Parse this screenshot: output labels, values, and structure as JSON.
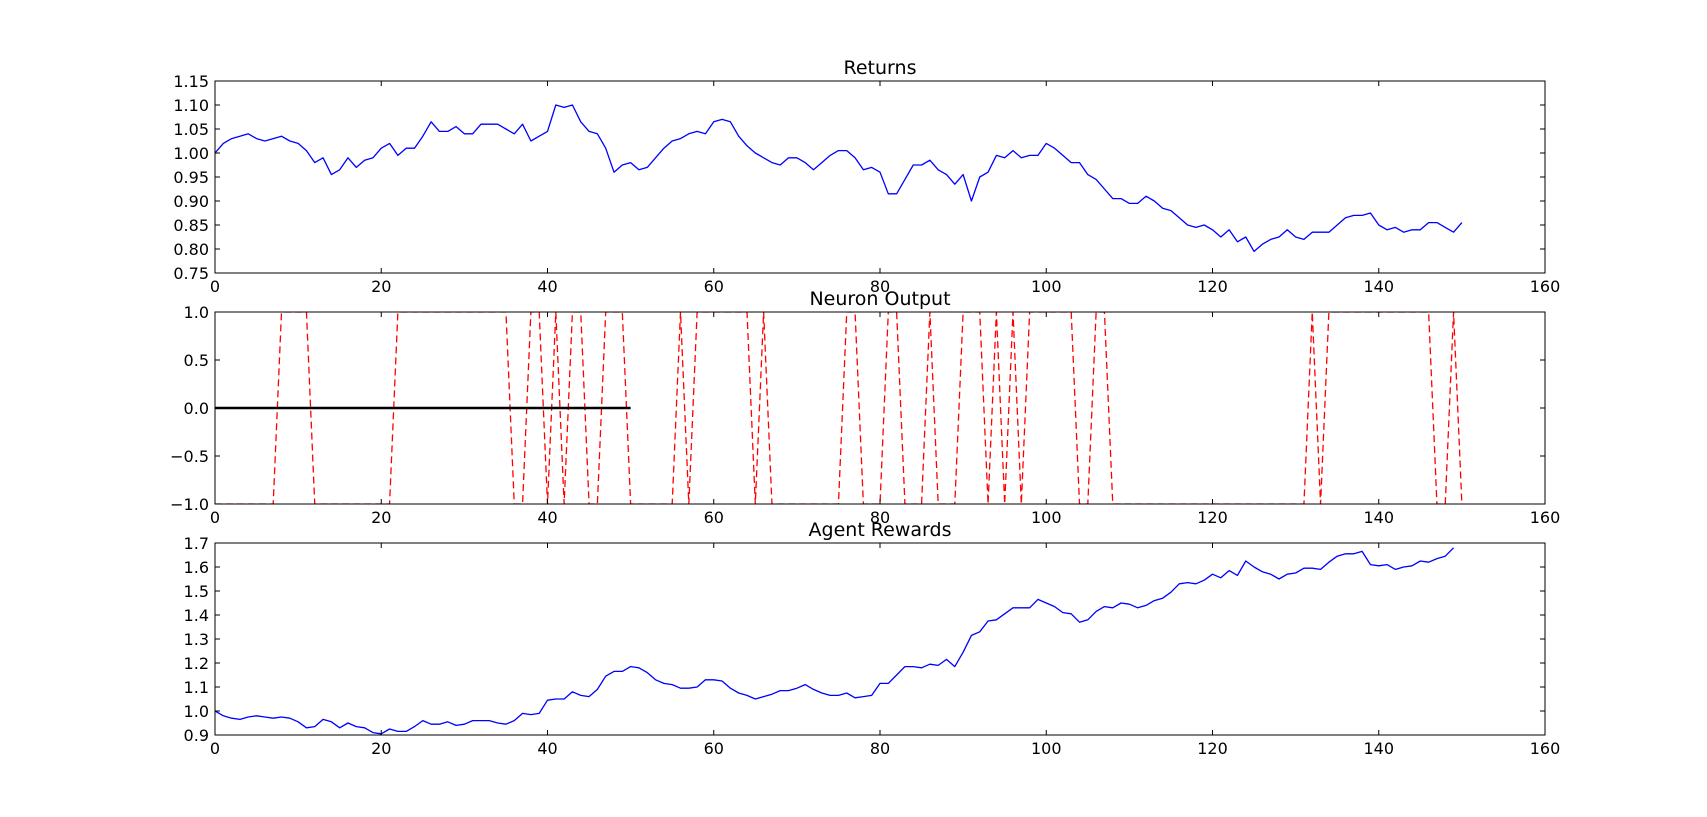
{
  "chart_data": [
    {
      "type": "line",
      "title": "Returns",
      "xlim": [
        0,
        160
      ],
      "ylim": [
        0.75,
        1.15
      ],
      "x_ticks": [
        0,
        20,
        40,
        60,
        80,
        100,
        120,
        140,
        160
      ],
      "x_tick_labels": [
        "0",
        "20",
        "40",
        "60",
        "80",
        "100",
        "120",
        "140",
        "160"
      ],
      "y_ticks": [
        0.75,
        0.8,
        0.85,
        0.9,
        0.95,
        1.0,
        1.05,
        1.1,
        1.15
      ],
      "y_tick_labels": [
        "0.75",
        "0.80",
        "0.85",
        "0.90",
        "0.95",
        "1.00",
        "1.05",
        "1.10",
        "1.15"
      ],
      "grid": false,
      "series": [
        {
          "color": "#0000ff",
          "style": "solid",
          "x_start": 0,
          "values": [
            1.0,
            1.02,
            1.03,
            1.035,
            1.04,
            1.03,
            1.025,
            1.03,
            1.035,
            1.025,
            1.02,
            1.005,
            0.98,
            0.99,
            0.955,
            0.965,
            0.99,
            0.97,
            0.985,
            0.99,
            1.01,
            1.02,
            0.995,
            1.01,
            1.01,
            1.035,
            1.065,
            1.045,
            1.045,
            1.055,
            1.04,
            1.04,
            1.06,
            1.06,
            1.06,
            1.05,
            1.04,
            1.06,
            1.025,
            1.035,
            1.045,
            1.1,
            1.095,
            1.1,
            1.065,
            1.045,
            1.04,
            1.01,
            0.96,
            0.975,
            0.98,
            0.965,
            0.97,
            0.99,
            1.01,
            1.025,
            1.03,
            1.04,
            1.045,
            1.04,
            1.065,
            1.07,
            1.065,
            1.035,
            1.015,
            1.0,
            0.99,
            0.98,
            0.975,
            0.99,
            0.99,
            0.98,
            0.965,
            0.98,
            0.995,
            1.005,
            1.005,
            0.99,
            0.965,
            0.97,
            0.96,
            0.915,
            0.915,
            0.945,
            0.975,
            0.975,
            0.985,
            0.965,
            0.955,
            0.935,
            0.955,
            0.9,
            0.95,
            0.96,
            0.995,
            0.99,
            1.005,
            0.99,
            0.995,
            0.995,
            1.02,
            1.01,
            0.995,
            0.98,
            0.98,
            0.955,
            0.945,
            0.925,
            0.905,
            0.905,
            0.895,
            0.895,
            0.91,
            0.9,
            0.885,
            0.88,
            0.865,
            0.85,
            0.845,
            0.85,
            0.84,
            0.825,
            0.84,
            0.815,
            0.825,
            0.795,
            0.81,
            0.82,
            0.825,
            0.84,
            0.825,
            0.82,
            0.835,
            0.835,
            0.835,
            0.85,
            0.865,
            0.87,
            0.87,
            0.875,
            0.85,
            0.84,
            0.845,
            0.835,
            0.84,
            0.84,
            0.855,
            0.855,
            0.845,
            0.835,
            0.855
          ]
        }
      ]
    },
    {
      "type": "line",
      "title": "Neuron Output",
      "xlim": [
        0,
        160
      ],
      "ylim": [
        -1.0,
        1.0
      ],
      "x_ticks": [
        0,
        20,
        40,
        60,
        80,
        100,
        120,
        140,
        160
      ],
      "x_tick_labels": [
        "0",
        "20",
        "40",
        "60",
        "80",
        "100",
        "120",
        "140",
        "160"
      ],
      "y_ticks": [
        -1.0,
        -0.5,
        0.0,
        0.5,
        1.0
      ],
      "y_tick_labels": [
        "−1.0",
        "−0.5",
        "0.0",
        "0.5",
        "1.0"
      ],
      "grid": false,
      "series": [
        {
          "color": "#ff0000",
          "style": "dashed",
          "x_start": 0,
          "values": [
            -1,
            -1,
            -1,
            -1,
            -1,
            -1,
            -1,
            -1,
            1,
            1,
            1,
            1,
            -1,
            -1,
            -1,
            -1,
            -1,
            -1,
            -1,
            -1,
            -1,
            -1,
            1,
            1,
            1,
            1,
            1,
            1,
            1,
            1,
            1,
            1,
            1,
            1,
            1,
            1,
            -1,
            -1,
            1,
            1,
            -1,
            1,
            -1,
            1,
            1,
            -1,
            -1,
            1,
            1,
            1,
            -1,
            -1,
            -1,
            -1,
            -1,
            -1,
            1,
            -1,
            1,
            1,
            1,
            1,
            1,
            1,
            1,
            -1,
            1,
            -1,
            -1,
            -1,
            -1,
            -1,
            -1,
            -1,
            -1,
            -1,
            1,
            1,
            -1,
            -1,
            -1,
            1,
            1,
            -1,
            -1,
            -1,
            1,
            -1,
            -1,
            -1,
            1,
            1,
            1,
            -1,
            1,
            -1,
            1,
            -1,
            1,
            1,
            1,
            1,
            1,
            1,
            -1,
            -1,
            1,
            1,
            -1,
            -1,
            -1,
            -1,
            -1,
            -1,
            -1,
            -1,
            -1,
            -1,
            -1,
            -1,
            -1,
            -1,
            -1,
            -1,
            -1,
            -1,
            -1,
            -1,
            -1,
            -1,
            -1,
            -1,
            1,
            -1,
            1,
            1,
            1,
            1,
            1,
            1,
            1,
            1,
            1,
            1,
            1,
            1,
            1,
            -1,
            -1,
            1,
            -1
          ]
        },
        {
          "color": "#000000",
          "style": "solid",
          "x": [
            0,
            50
          ],
          "values": [
            0.0,
            0.0
          ]
        }
      ]
    },
    {
      "type": "line",
      "title": "Agent Rewards",
      "xlim": [
        0,
        160
      ],
      "ylim": [
        0.9,
        1.7
      ],
      "x_ticks": [
        0,
        20,
        40,
        60,
        80,
        100,
        120,
        140,
        160
      ],
      "x_tick_labels": [
        "0",
        "20",
        "40",
        "60",
        "80",
        "100",
        "120",
        "140",
        "160"
      ],
      "y_ticks": [
        0.9,
        1.0,
        1.1,
        1.2,
        1.3,
        1.4,
        1.5,
        1.6,
        1.7
      ],
      "y_tick_labels": [
        "0.9",
        "1.0",
        "1.1",
        "1.2",
        "1.3",
        "1.4",
        "1.5",
        "1.6",
        "1.7"
      ],
      "grid": false,
      "series": [
        {
          "color": "#0000ff",
          "style": "solid",
          "x_start": 0,
          "values": [
            1.0,
            0.98,
            0.97,
            0.965,
            0.975,
            0.98,
            0.975,
            0.97,
            0.975,
            0.97,
            0.955,
            0.93,
            0.935,
            0.965,
            0.955,
            0.93,
            0.95,
            0.935,
            0.93,
            0.91,
            0.905,
            0.925,
            0.915,
            0.915,
            0.935,
            0.96,
            0.945,
            0.945,
            0.955,
            0.94,
            0.945,
            0.96,
            0.96,
            0.96,
            0.95,
            0.945,
            0.96,
            0.99,
            0.985,
            0.99,
            1.045,
            1.05,
            1.05,
            1.08,
            1.065,
            1.06,
            1.09,
            1.145,
            1.165,
            1.165,
            1.185,
            1.18,
            1.16,
            1.13,
            1.115,
            1.11,
            1.095,
            1.095,
            1.1,
            1.13,
            1.13,
            1.125,
            1.095,
            1.075,
            1.065,
            1.05,
            1.06,
            1.07,
            1.085,
            1.085,
            1.095,
            1.11,
            1.09,
            1.075,
            1.065,
            1.065,
            1.075,
            1.055,
            1.06,
            1.065,
            1.115,
            1.115,
            1.15,
            1.185,
            1.185,
            1.18,
            1.195,
            1.19,
            1.215,
            1.185,
            1.245,
            1.315,
            1.33,
            1.375,
            1.38,
            1.405,
            1.43,
            1.43,
            1.43,
            1.465,
            1.45,
            1.435,
            1.41,
            1.405,
            1.37,
            1.38,
            1.415,
            1.435,
            1.43,
            1.45,
            1.445,
            1.43,
            1.44,
            1.46,
            1.47,
            1.495,
            1.53,
            1.535,
            1.53,
            1.545,
            1.57,
            1.555,
            1.585,
            1.565,
            1.625,
            1.6,
            1.58,
            1.57,
            1.55,
            1.57,
            1.575,
            1.595,
            1.595,
            1.59,
            1.62,
            1.645,
            1.655,
            1.655,
            1.665,
            1.61,
            1.605,
            1.61,
            1.59,
            1.6,
            1.605,
            1.625,
            1.62,
            1.635,
            1.645,
            1.68
          ]
        }
      ]
    }
  ]
}
